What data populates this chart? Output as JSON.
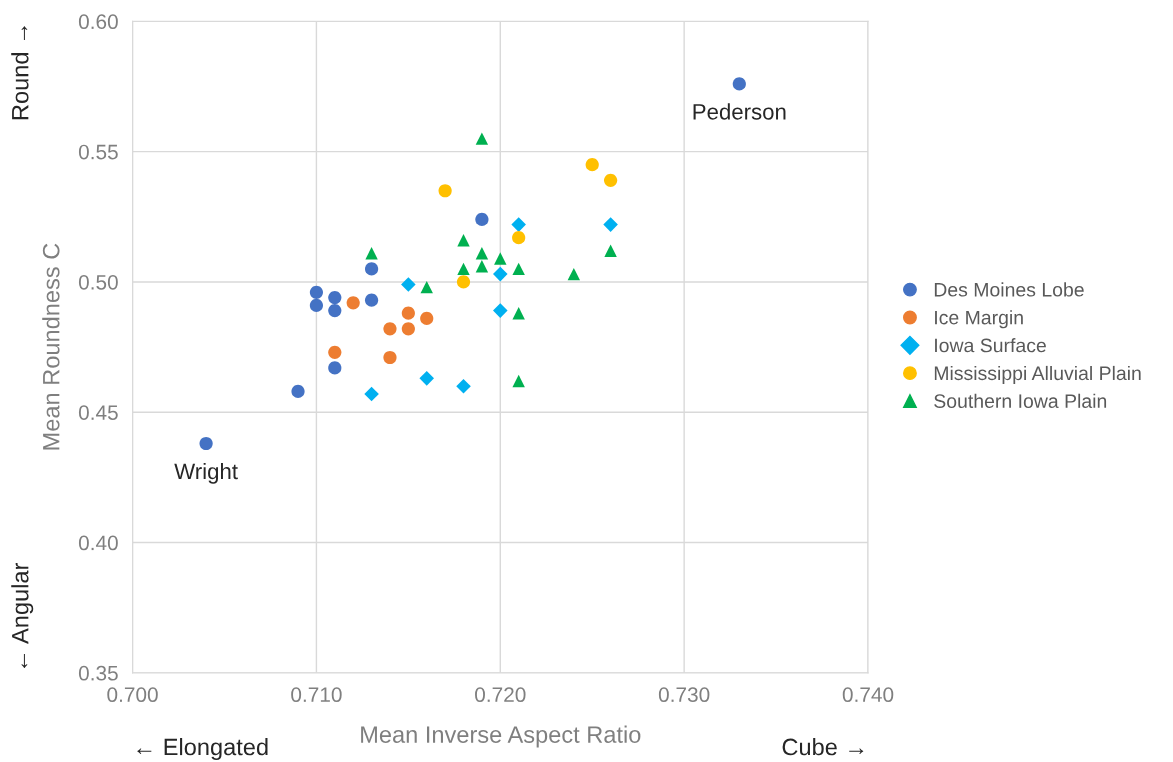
{
  "chart_data": {
    "type": "scatter",
    "xlabel": "Mean Inverse Aspect Ratio",
    "ylabel": "Mean Roundness C",
    "xlim": [
      0.7,
      0.74
    ],
    "ylim": [
      0.35,
      0.6
    ],
    "xticks": [
      {
        "value": 0.7,
        "label": "0.700"
      },
      {
        "value": 0.71,
        "label": "0.710"
      },
      {
        "value": 0.72,
        "label": "0.720"
      },
      {
        "value": 0.73,
        "label": "0.730"
      },
      {
        "value": 0.74,
        "label": "0.740"
      }
    ],
    "yticks": [
      {
        "value": 0.35,
        "label": "0.35"
      },
      {
        "value": 0.4,
        "label": "0.40"
      },
      {
        "value": 0.45,
        "label": "0.45"
      },
      {
        "value": 0.5,
        "label": "0.50"
      },
      {
        "value": 0.55,
        "label": "0.55"
      },
      {
        "value": 0.6,
        "label": "0.60"
      }
    ],
    "grid": true,
    "legend": "right",
    "series": [
      {
        "name": "Des Moines Lobe",
        "color": "#4472c4",
        "marker": "circle",
        "x": [
          0.704,
          0.709,
          0.71,
          0.71,
          0.711,
          0.711,
          0.711,
          0.713,
          0.713,
          0.719,
          0.733
        ],
        "values": [
          0.438,
          0.458,
          0.496,
          0.491,
          0.494,
          0.489,
          0.467,
          0.505,
          0.493,
          0.524,
          0.576
        ]
      },
      {
        "name": "Ice Margin",
        "color": "#ed7d31",
        "marker": "circle",
        "x": [
          0.711,
          0.712,
          0.714,
          0.714,
          0.715,
          0.715,
          0.716
        ],
        "values": [
          0.473,
          0.492,
          0.482,
          0.471,
          0.488,
          0.482,
          0.486
        ]
      },
      {
        "name": "Iowa Surface",
        "color": "#00b0f0",
        "marker": "diamond",
        "x": [
          0.713,
          0.715,
          0.716,
          0.718,
          0.72,
          0.72,
          0.721,
          0.726
        ],
        "values": [
          0.457,
          0.499,
          0.463,
          0.46,
          0.503,
          0.489,
          0.522,
          0.522
        ]
      },
      {
        "name": "Mississippi Alluvial Plain",
        "color": "#ffc000",
        "marker": "circle",
        "x": [
          0.717,
          0.718,
          0.721,
          0.725,
          0.726
        ],
        "values": [
          0.535,
          0.5,
          0.517,
          0.545,
          0.539
        ]
      },
      {
        "name": "Southern Iowa Plain",
        "color": "#00b050",
        "marker": "triangle",
        "x": [
          0.713,
          0.716,
          0.718,
          0.718,
          0.719,
          0.719,
          0.719,
          0.72,
          0.721,
          0.721,
          0.721,
          0.724,
          0.726
        ],
        "values": [
          0.511,
          0.498,
          0.516,
          0.505,
          0.555,
          0.511,
          0.506,
          0.509,
          0.505,
          0.488,
          0.462,
          0.503,
          0.512
        ]
      }
    ],
    "annotations": [
      "← Elongated",
      "Cube →",
      "Round →",
      "← Angular",
      {
        "text": "Wright",
        "x": 0.704,
        "y": 0.438
      },
      {
        "text": "Pederson",
        "x": 0.733,
        "y": 0.576
      }
    ]
  }
}
